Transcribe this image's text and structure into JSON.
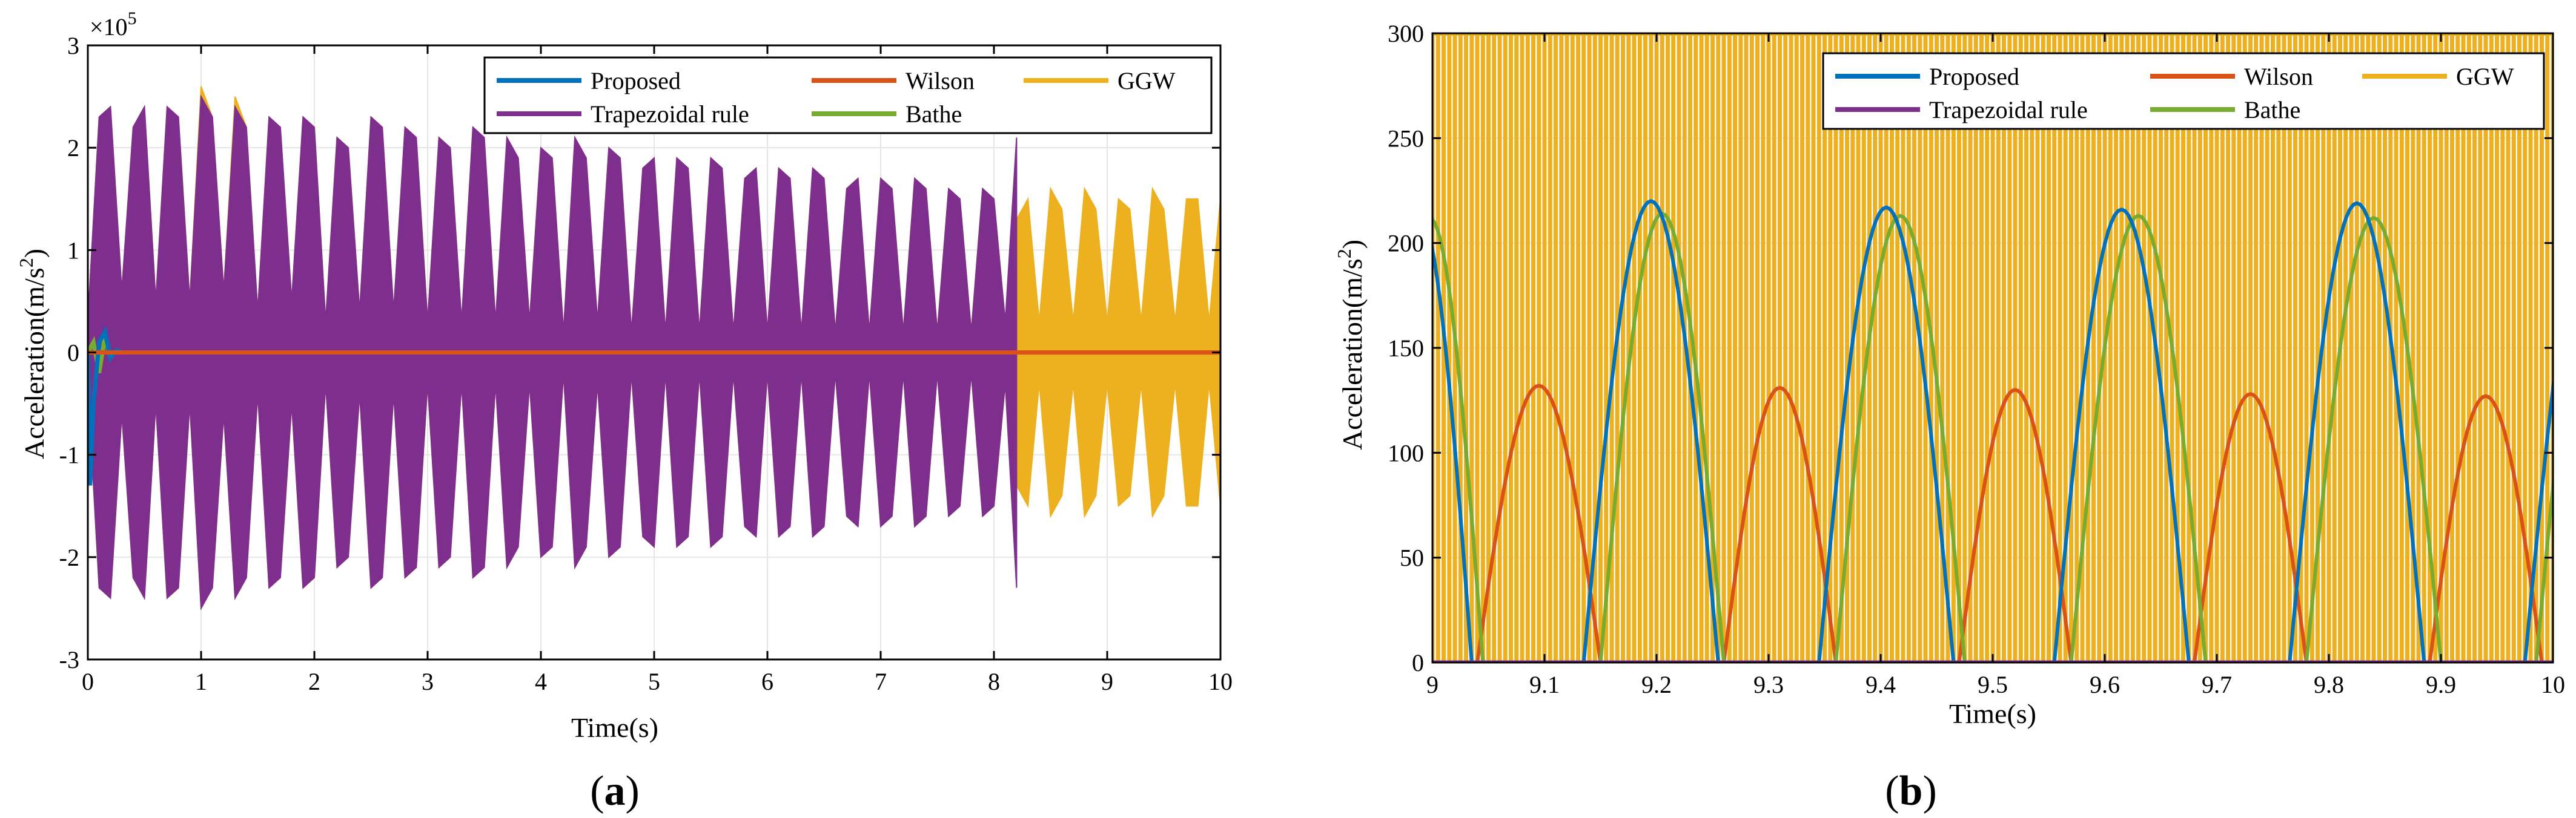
{
  "colors": {
    "proposed": "#0072BD",
    "wilson": "#D95319",
    "ggw": "#EDB120",
    "trapezoidal": "#7E2F8E",
    "bathe": "#77AC30",
    "grid": "#e6e6e6"
  },
  "legend": [
    {
      "key": "proposed",
      "label": "Proposed"
    },
    {
      "key": "wilson",
      "label": "Wilson"
    },
    {
      "key": "ggw",
      "label": "GGW"
    },
    {
      "key": "trapezoidal",
      "label": "Trapezoidal rule"
    },
    {
      "key": "bathe",
      "label": "Bathe"
    }
  ],
  "chart_data": [
    {
      "panel": "(a)",
      "panel_letter": "a",
      "type": "line",
      "xlabel": "Time(s)",
      "ylabel_base": "Acceleration(m/s",
      "ylabel_sup": "2",
      "ylabel_close": ")",
      "exponent_base": "×10",
      "exponent_power": "5",
      "xlim": [
        0,
        10
      ],
      "ylim": [
        -3,
        3
      ],
      "y_scale": 100000,
      "xticks": [
        0,
        1,
        2,
        3,
        4,
        5,
        6,
        7,
        8,
        9,
        10
      ],
      "xtick_labels": [
        "0",
        "1",
        "2",
        "3",
        "4",
        "5",
        "6",
        "7",
        "8",
        "9",
        "10"
      ],
      "yticks": [
        -3,
        -2,
        -1,
        0,
        1,
        2,
        3
      ],
      "ytick_labels": [
        "-3",
        "-2",
        "-1",
        "0",
        "1",
        "2",
        "3"
      ],
      "grid": true,
      "legend_position": "top-right",
      "series": [
        {
          "key": "ggw",
          "name": "GGW",
          "envelope_t": [
            0.0,
            0.1,
            0.2,
            0.3,
            0.4,
            0.5,
            0.6,
            0.7,
            0.8,
            0.9,
            1.0,
            1.1,
            1.2,
            1.3,
            1.4,
            1.5,
            1.6,
            1.7,
            1.8,
            1.9,
            2.0,
            2.1,
            2.2,
            2.3,
            2.4,
            2.5,
            2.6,
            2.7,
            2.8,
            2.9,
            3.0,
            3.1,
            3.2,
            3.3,
            3.4,
            3.5,
            3.6,
            3.7,
            3.8,
            3.9,
            4.0,
            4.1,
            4.2,
            4.3,
            4.4,
            4.5,
            4.6,
            4.7,
            4.8,
            4.9,
            5.0,
            5.1,
            5.2,
            5.3,
            5.4,
            5.5,
            5.6,
            5.7,
            5.8,
            5.9,
            6.0,
            6.1,
            6.2,
            6.3,
            6.4,
            6.5,
            6.6,
            6.7,
            6.8,
            6.9,
            7.0,
            7.1,
            7.2,
            7.3,
            7.4,
            7.5,
            7.6,
            7.7,
            7.8,
            7.9,
            8.0,
            8.1,
            8.2,
            8.3,
            8.4,
            8.5,
            8.6,
            8.7,
            8.8,
            8.9,
            9.0,
            9.1,
            9.2,
            9.3,
            9.4,
            9.5,
            9.6,
            9.7,
            9.8,
            9.9,
            10.0
          ],
          "envelope_upper": [
            0.3,
            2.3,
            2.4,
            0.6,
            2.2,
            2.4,
            0.5,
            2.4,
            2.3,
            0.5,
            2.6,
            2.3,
            0.6,
            2.5,
            2.2,
            0.4,
            2.3,
            2.2,
            0.5,
            2.3,
            2.2,
            0.3,
            2.1,
            2.0,
            0.4,
            2.3,
            2.2,
            0.4,
            2.2,
            2.1,
            0.3,
            2.1,
            2.0,
            0.3,
            2.2,
            2.1,
            0.3,
            2.1,
            1.9,
            0.3,
            2.0,
            1.9,
            0.2,
            2.1,
            1.9,
            0.3,
            2.0,
            1.9,
            0.2,
            1.8,
            1.9,
            0.2,
            1.9,
            1.8,
            0.2,
            1.9,
            1.8,
            0.2,
            1.7,
            1.8,
            0.2,
            1.8,
            1.7,
            0.2,
            1.8,
            1.7,
            0.2,
            1.6,
            1.7,
            0.2,
            1.7,
            1.6,
            0.2,
            1.7,
            1.6,
            0.2,
            1.6,
            1.5,
            0.2,
            1.6,
            1.5,
            0.3,
            1.3,
            1.5,
            0.3,
            1.6,
            1.4,
            0.3,
            1.6,
            1.4,
            0.3,
            1.5,
            1.4,
            0.3,
            1.6,
            1.4,
            0.3,
            1.5,
            1.5,
            0.3,
            1.5
          ],
          "envelope_lower": [
            -0.3,
            -2.3,
            -2.4,
            -0.6,
            -2.2,
            -2.4,
            -0.5,
            -2.4,
            -2.3,
            -0.5,
            -2.5,
            -2.3,
            -0.6,
            -2.4,
            -2.2,
            -0.4,
            -2.3,
            -2.2,
            -0.5,
            -2.3,
            -2.2,
            -0.3,
            -2.1,
            -2.0,
            -0.4,
            -2.3,
            -2.2,
            -0.4,
            -2.2,
            -2.1,
            -0.3,
            -2.1,
            -2.0,
            -0.3,
            -2.2,
            -2.1,
            -0.3,
            -2.1,
            -1.9,
            -0.3,
            -2.0,
            -1.9,
            -0.2,
            -2.1,
            -1.9,
            -0.3,
            -2.0,
            -1.9,
            -0.2,
            -1.8,
            -1.9,
            -0.2,
            -1.9,
            -1.8,
            -0.2,
            -1.9,
            -1.8,
            -0.2,
            -1.7,
            -1.8,
            -0.2,
            -1.8,
            -1.7,
            -0.2,
            -1.8,
            -1.7,
            -0.2,
            -1.6,
            -1.7,
            -0.2,
            -1.7,
            -1.6,
            -0.2,
            -1.7,
            -1.6,
            -0.2,
            -1.6,
            -1.5,
            -0.2,
            -1.6,
            -1.5,
            -0.3,
            -1.3,
            -1.5,
            -0.3,
            -1.6,
            -1.4,
            -0.3,
            -1.6,
            -1.4,
            -0.3,
            -1.5,
            -1.4,
            -0.3,
            -1.6,
            -1.4,
            -0.3,
            -1.5,
            -1.5,
            -0.3,
            -1.5
          ]
        },
        {
          "key": "trapezoidal",
          "name": "Trapezoidal rule",
          "envelope_t": [
            0.0,
            0.1,
            0.2,
            0.3,
            0.4,
            0.5,
            0.6,
            0.7,
            0.8,
            0.9,
            1.0,
            1.1,
            1.2,
            1.3,
            1.4,
            1.5,
            1.6,
            1.7,
            1.8,
            1.9,
            2.0,
            2.1,
            2.2,
            2.3,
            2.4,
            2.5,
            2.6,
            2.7,
            2.8,
            2.9,
            3.0,
            3.1,
            3.2,
            3.3,
            3.4,
            3.5,
            3.6,
            3.7,
            3.8,
            3.9,
            4.0,
            4.1,
            4.2,
            4.3,
            4.4,
            4.5,
            4.6,
            4.7,
            4.8,
            4.9,
            5.0,
            5.1,
            5.2,
            5.3,
            5.4,
            5.5,
            5.6,
            5.7,
            5.8,
            5.9,
            6.0,
            6.1,
            6.2,
            6.3,
            6.4,
            6.5,
            6.6,
            6.7,
            6.8,
            6.9,
            7.0,
            7.1,
            7.2,
            7.3,
            7.4,
            7.5,
            7.6,
            7.7,
            7.8,
            7.9,
            8.0,
            8.1,
            8.2
          ],
          "envelope_upper": [
            0.3,
            2.3,
            2.4,
            0.6,
            2.2,
            2.4,
            0.5,
            2.4,
            2.3,
            0.5,
            2.5,
            2.3,
            0.6,
            2.4,
            2.2,
            0.4,
            2.3,
            2.2,
            0.5,
            2.3,
            2.2,
            0.3,
            2.1,
            2.0,
            0.4,
            2.3,
            2.2,
            0.4,
            2.2,
            2.1,
            0.3,
            2.1,
            2.0,
            0.3,
            2.2,
            2.1,
            0.3,
            2.1,
            1.9,
            0.3,
            2.0,
            1.9,
            0.2,
            2.1,
            1.9,
            0.3,
            2.0,
            1.9,
            0.2,
            1.8,
            1.9,
            0.2,
            1.9,
            1.8,
            0.2,
            1.9,
            1.8,
            0.2,
            1.7,
            1.8,
            0.2,
            1.8,
            1.7,
            0.2,
            1.8,
            1.7,
            0.2,
            1.6,
            1.7,
            0.2,
            1.7,
            1.6,
            0.2,
            1.7,
            1.6,
            0.2,
            1.6,
            1.5,
            0.2,
            1.6,
            1.5,
            0.3,
            2.1
          ],
          "envelope_lower": [
            -0.3,
            -2.3,
            -2.4,
            -0.6,
            -2.2,
            -2.4,
            -0.5,
            -2.4,
            -2.3,
            -0.5,
            -2.5,
            -2.3,
            -0.6,
            -2.4,
            -2.2,
            -0.4,
            -2.3,
            -2.2,
            -0.5,
            -2.3,
            -2.2,
            -0.3,
            -2.1,
            -2.0,
            -0.4,
            -2.3,
            -2.2,
            -0.4,
            -2.2,
            -2.1,
            -0.3,
            -2.1,
            -2.0,
            -0.3,
            -2.2,
            -2.1,
            -0.3,
            -2.1,
            -1.9,
            -0.3,
            -2.0,
            -1.9,
            -0.2,
            -2.1,
            -1.9,
            -0.3,
            -2.0,
            -1.9,
            -0.2,
            -1.8,
            -1.9,
            -0.2,
            -1.9,
            -1.8,
            -0.2,
            -1.9,
            -1.8,
            -0.2,
            -1.7,
            -1.8,
            -0.2,
            -1.8,
            -1.7,
            -0.2,
            -1.8,
            -1.7,
            -0.2,
            -1.6,
            -1.7,
            -0.2,
            -1.7,
            -1.6,
            -0.2,
            -1.7,
            -1.6,
            -0.2,
            -1.6,
            -1.5,
            -0.2,
            -1.6,
            -1.5,
            -0.3,
            -2.3
          ]
        },
        {
          "key": "bathe",
          "name": "Bathe",
          "x": [
            0,
            0.05,
            0.1,
            0.15,
            0.2,
            0.25,
            0.3,
            10
          ],
          "y": [
            0,
            0.1,
            -0.2,
            0.15,
            -0.05,
            0.02,
            0,
            0
          ]
        },
        {
          "key": "proposed",
          "name": "Proposed",
          "x": [
            0,
            0.02,
            0.05,
            0.1,
            0.15,
            0.2,
            0.25,
            0.3,
            10
          ],
          "y": [
            0,
            -1.3,
            -0.5,
            0.1,
            0.2,
            -0.05,
            0.02,
            0,
            0
          ]
        },
        {
          "key": "wilson",
          "name": "Wilson",
          "x": [
            0,
            10
          ],
          "y": [
            0,
            0
          ]
        }
      ]
    },
    {
      "panel": "(b)",
      "panel_letter": "b",
      "type": "line",
      "xlabel": "Time(s)",
      "ylabel_base": "Acceleration(m/s",
      "ylabel_sup": "2",
      "ylabel_close": ")",
      "xlim": [
        9,
        10
      ],
      "ylim": [
        0,
        300
      ],
      "xticks": [
        9,
        9.1,
        9.2,
        9.3,
        9.4,
        9.5,
        9.6,
        9.7,
        9.8,
        9.9,
        10
      ],
      "xtick_labels": [
        "9",
        "9.1",
        "9.2",
        "9.3",
        "9.4",
        "9.5",
        "9.6",
        "9.7",
        "9.8",
        "9.9",
        "10"
      ],
      "yticks": [
        0,
        50,
        100,
        150,
        200,
        250,
        300
      ],
      "ytick_labels": [
        "0",
        "50",
        "100",
        "150",
        "200",
        "250",
        "300"
      ],
      "grid": true,
      "legend_position": "top-right",
      "series": [
        {
          "key": "ggw",
          "name": "GGW",
          "description": "rapid oscillation exceeding axis range",
          "oscillation_period": 0.01,
          "min": 0,
          "max": 300
        },
        {
          "key": "wilson",
          "name": "Wilson",
          "arches": [
            {
              "start": 9.04,
              "end": 9.15,
              "peak": 132
            },
            {
              "start": 9.26,
              "end": 9.36,
              "peak": 131
            },
            {
              "start": 9.47,
              "end": 9.57,
              "peak": 130
            },
            {
              "start": 9.68,
              "end": 9.78,
              "peak": 128
            },
            {
              "start": 9.89,
              "end": 9.99,
              "peak": 127
            }
          ]
        },
        {
          "key": "bathe",
          "name": "Bathe",
          "arches": [
            {
              "start": 8.95,
              "end": 9.045,
              "peak": 212
            },
            {
              "start": 9.15,
              "end": 9.26,
              "peak": 214
            },
            {
              "start": 9.36,
              "end": 9.475,
              "peak": 213
            },
            {
              "start": 9.57,
              "end": 9.69,
              "peak": 213
            },
            {
              "start": 9.78,
              "end": 9.9,
              "peak": 212
            },
            {
              "start": 9.985,
              "end": 10.1,
              "peak": 210
            }
          ]
        },
        {
          "key": "proposed",
          "name": "Proposed",
          "arches": [
            {
              "start": 8.94,
              "end": 9.035,
              "peak": 215
            },
            {
              "start": 9.135,
              "end": 9.255,
              "peak": 220
            },
            {
              "start": 9.345,
              "end": 9.465,
              "peak": 217
            },
            {
              "start": 9.555,
              "end": 9.675,
              "peak": 216
            },
            {
              "start": 9.765,
              "end": 9.885,
              "peak": 219
            },
            {
              "start": 9.975,
              "end": 10.095,
              "peak": 215
            }
          ]
        },
        {
          "key": "trapezoidal",
          "name": "Trapezoidal rule",
          "x": [
            9,
            10
          ],
          "y": [
            0,
            0
          ]
        }
      ]
    }
  ]
}
